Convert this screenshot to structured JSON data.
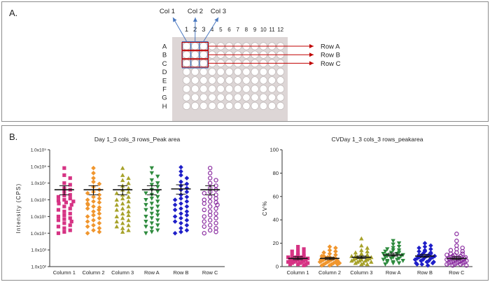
{
  "panel_a": {
    "label": "A.",
    "col_labels": [
      "Col 1",
      "Col 2",
      "Col 3"
    ],
    "plate_columns": [
      "1",
      "2",
      "3",
      "4",
      "5",
      "6",
      "7",
      "8",
      "9",
      "10",
      "11",
      "12"
    ],
    "plate_rows": [
      "A",
      "B",
      "C",
      "D",
      "E",
      "F",
      "G",
      "H"
    ],
    "row_arrow_labels": [
      "Row A",
      "Row B",
      "Row C"
    ],
    "colors": {
      "plate": "#ddd6d6",
      "col_box": "#4a78c0",
      "row_box": "#c00000",
      "arrow_col": "#4a78c0",
      "arrow_row": "#c00000"
    }
  },
  "panel_b": {
    "label": "B."
  },
  "chart_data": [
    {
      "type": "scatter",
      "title": "Day 1_3 cols_3 rows_Peak area",
      "ylabel": "Intensity (CPS)",
      "yscale": "log",
      "ylim": [
        100,
        1000000000
      ],
      "ytick_values": [
        100,
        1000,
        10000,
        100000,
        1000000,
        10000000,
        100000000,
        1000000000
      ],
      "ytick_labels": [
        "1.0x10²",
        "1.0x10³",
        "1.0x10⁴",
        "1.0x10⁵",
        "1.0x10⁶",
        "1.0x10⁷",
        "1.0x10⁸",
        "1.0x10⁹"
      ],
      "categories": [
        "Column 1",
        "Column 2",
        "Column 3",
        "Row A",
        "Row B",
        "Row C"
      ],
      "series": [
        {
          "name": "Column 1",
          "color": "#d63384",
          "marker": "square",
          "mean": 4000000,
          "err_low": 2000000,
          "err_high": 7000000,
          "values": [
            80000000,
            30000000,
            20000000,
            10000000,
            8000000,
            5000000,
            4000000,
            3000000,
            2000000,
            1800000,
            1500000,
            1200000,
            1000000,
            900000,
            800000,
            700000,
            600000,
            500000,
            400000,
            300000,
            250000,
            200000,
            150000,
            120000,
            100000,
            80000,
            70000,
            60000,
            50000,
            40000,
            30000,
            25000,
            20000,
            15000,
            12000,
            10000
          ]
        },
        {
          "name": "Column 2",
          "color": "#f0962e",
          "marker": "diamond",
          "mean": 4000000,
          "err_low": 2000000,
          "err_high": 7000000,
          "values": [
            80000000,
            40000000,
            20000000,
            12000000,
            9000000,
            6000000,
            4000000,
            3000000,
            2500000,
            2000000,
            1500000,
            1200000,
            1000000,
            800000,
            700000,
            600000,
            500000,
            400000,
            350000,
            300000,
            250000,
            200000,
            150000,
            120000,
            100000,
            80000,
            60000,
            50000,
            40000,
            30000,
            25000,
            20000,
            15000,
            12000,
            10000
          ]
        },
        {
          "name": "Column 3",
          "color": "#a7a22a",
          "marker": "triangle-up",
          "mean": 4000000,
          "err_low": 2000000,
          "err_high": 7000000,
          "values": [
            80000000,
            30000000,
            20000000,
            15000000,
            10000000,
            7000000,
            5000000,
            4000000,
            3000000,
            2500000,
            2000000,
            1500000,
            1200000,
            1000000,
            800000,
            600000,
            500000,
            400000,
            300000,
            250000,
            200000,
            150000,
            120000,
            100000,
            80000,
            60000,
            50000,
            40000,
            30000,
            25000,
            20000,
            15000,
            12000
          ]
        },
        {
          "name": "Row A",
          "color": "#2e8b3e",
          "marker": "triangle-down",
          "mean": 4000000,
          "err_low": 2000000,
          "err_high": 7000000,
          "values": [
            80000000,
            40000000,
            25000000,
            15000000,
            10000000,
            8000000,
            6000000,
            4000000,
            3000000,
            2500000,
            2000000,
            1500000,
            1200000,
            1000000,
            800000,
            600000,
            500000,
            400000,
            300000,
            250000,
            200000,
            150000,
            120000,
            100000,
            80000,
            60000,
            50000,
            40000,
            30000,
            25000,
            20000,
            15000,
            12000,
            10000
          ]
        },
        {
          "name": "Row B",
          "color": "#1f1fc8",
          "marker": "diamond",
          "mean": 4500000,
          "err_low": 2200000,
          "err_high": 8000000,
          "values": [
            90000000,
            50000000,
            30000000,
            20000000,
            12000000,
            9000000,
            7000000,
            5000000,
            4000000,
            3000000,
            2000000,
            1500000,
            1200000,
            1000000,
            800000,
            600000,
            500000,
            400000,
            300000,
            250000,
            200000,
            150000,
            120000,
            100000,
            80000,
            60000,
            50000,
            40000,
            30000,
            20000,
            15000,
            12000,
            10000
          ]
        },
        {
          "name": "Row C",
          "color": "#8a2ba0",
          "marker": "circle-open",
          "mean": 4000000,
          "err_low": 2000000,
          "err_high": 7000000,
          "values": [
            80000000,
            40000000,
            20000000,
            15000000,
            10000000,
            7000000,
            5000000,
            4000000,
            3000000,
            2500000,
            2000000,
            1500000,
            1200000,
            1000000,
            800000,
            700000,
            600000,
            500000,
            400000,
            300000,
            250000,
            200000,
            150000,
            120000,
            100000,
            80000,
            60000,
            50000,
            40000,
            30000,
            25000,
            20000,
            15000,
            12000,
            10000
          ]
        }
      ]
    },
    {
      "type": "scatter",
      "title": "CVDay 1_3 cols_3 rows_peakarea",
      "ylabel": "CV%",
      "yscale": "linear",
      "ylim": [
        0,
        100
      ],
      "ytick_values": [
        0,
        20,
        40,
        60,
        80,
        100
      ],
      "ytick_labels": [
        "0",
        "20",
        "40",
        "60",
        "80",
        "100"
      ],
      "categories": [
        "Column 1",
        "Column 2",
        "Column 3",
        "Row A",
        "Row B",
        "Row C"
      ],
      "series": [
        {
          "name": "Column 1",
          "color": "#d63384",
          "marker": "square",
          "mean": 7,
          "err_low": 6,
          "err_high": 8.5,
          "values": [
            17,
            15,
            14,
            13,
            12,
            11,
            10,
            10,
            9,
            9,
            8,
            8,
            8,
            7,
            7,
            7,
            6,
            6,
            6,
            5,
            5,
            5,
            4,
            4,
            4,
            3,
            3,
            3,
            2,
            2,
            2,
            1
          ]
        },
        {
          "name": "Column 2",
          "color": "#f0962e",
          "marker": "diamond",
          "mean": 7,
          "err_low": 6,
          "err_high": 8,
          "values": [
            17,
            16,
            14,
            13,
            12,
            11,
            10,
            9,
            9,
            8,
            8,
            7,
            7,
            7,
            6,
            6,
            6,
            5,
            5,
            5,
            4,
            4,
            4,
            3,
            3,
            3,
            2,
            2,
            2,
            1,
            1
          ]
        },
        {
          "name": "Column 3",
          "color": "#a7a22a",
          "marker": "triangle-up",
          "mean": 8,
          "err_low": 7,
          "err_high": 9,
          "values": [
            24,
            18,
            16,
            14,
            13,
            12,
            11,
            11,
            10,
            10,
            9,
            9,
            8,
            8,
            8,
            7,
            7,
            7,
            6,
            6,
            6,
            5,
            5,
            5,
            4,
            4,
            3,
            3,
            2,
            2
          ]
        },
        {
          "name": "Row A",
          "color": "#2e8b3e",
          "marker": "triangle-down",
          "mean": 10,
          "err_low": 9,
          "err_high": 11.5,
          "values": [
            22,
            20,
            19,
            17,
            16,
            15,
            14,
            14,
            13,
            12,
            12,
            11,
            11,
            10,
            10,
            9,
            9,
            9,
            8,
            8,
            7,
            7,
            6,
            6,
            5,
            5,
            4,
            4,
            3,
            3,
            2
          ]
        },
        {
          "name": "Row B",
          "color": "#1f1fc8",
          "marker": "diamond",
          "mean": 9,
          "err_low": 8,
          "err_high": 10.5,
          "values": [
            20,
            18,
            17,
            16,
            15,
            14,
            13,
            13,
            12,
            11,
            11,
            10,
            10,
            9,
            9,
            9,
            8,
            8,
            8,
            7,
            7,
            6,
            6,
            5,
            5,
            4,
            4,
            3,
            3,
            2,
            2,
            1
          ]
        },
        {
          "name": "Row C",
          "color": "#8a2ba0",
          "marker": "circle-open",
          "mean": 7,
          "err_low": 6,
          "err_high": 8.5,
          "values": [
            28,
            22,
            18,
            16,
            15,
            14,
            13,
            12,
            11,
            11,
            10,
            10,
            9,
            9,
            8,
            8,
            8,
            7,
            7,
            7,
            6,
            6,
            6,
            5,
            5,
            5,
            4,
            4,
            4,
            3,
            3,
            3,
            2,
            2,
            2,
            1,
            1
          ]
        }
      ]
    }
  ]
}
